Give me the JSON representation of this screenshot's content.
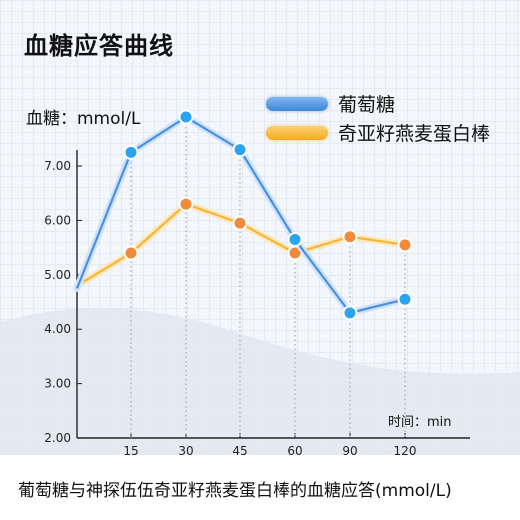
{
  "title": "血糖应答曲线",
  "caption": "葡萄糖与神探伍伍奇亚籽燕麦蛋白棒的血糖应答(mmol/L)",
  "colors": {
    "glucose": "#4a90e2",
    "bar": "#f6b73c",
    "axis": "#222222",
    "grid": "#c9d4e4",
    "wave": "#dfe5ee"
  },
  "chart_data": {
    "type": "line",
    "ylabel": "血糖：mmol/L",
    "xlabel": "时间：min",
    "x": [
      0,
      15,
      30,
      45,
      60,
      90,
      120
    ],
    "x_tick_labels": [
      "15",
      "30",
      "45",
      "60",
      "90",
      "120"
    ],
    "y_ticks": [
      "2.00",
      "3.00",
      "4.00",
      "5.00",
      "6.00",
      "7.00"
    ],
    "ylim": [
      2.0,
      8.0
    ],
    "series": [
      {
        "name": "葡萄糖",
        "color": "#4a90e2",
        "values": [
          4.75,
          7.25,
          7.9,
          7.3,
          5.65,
          4.3,
          4.55
        ]
      },
      {
        "name": "奇亚籽燕麦蛋白棒",
        "color": "#f6b73c",
        "values": [
          4.8,
          5.4,
          6.3,
          5.95,
          5.4,
          5.7,
          5.55
        ]
      }
    ],
    "legend_position": "top-right",
    "grid": true
  }
}
